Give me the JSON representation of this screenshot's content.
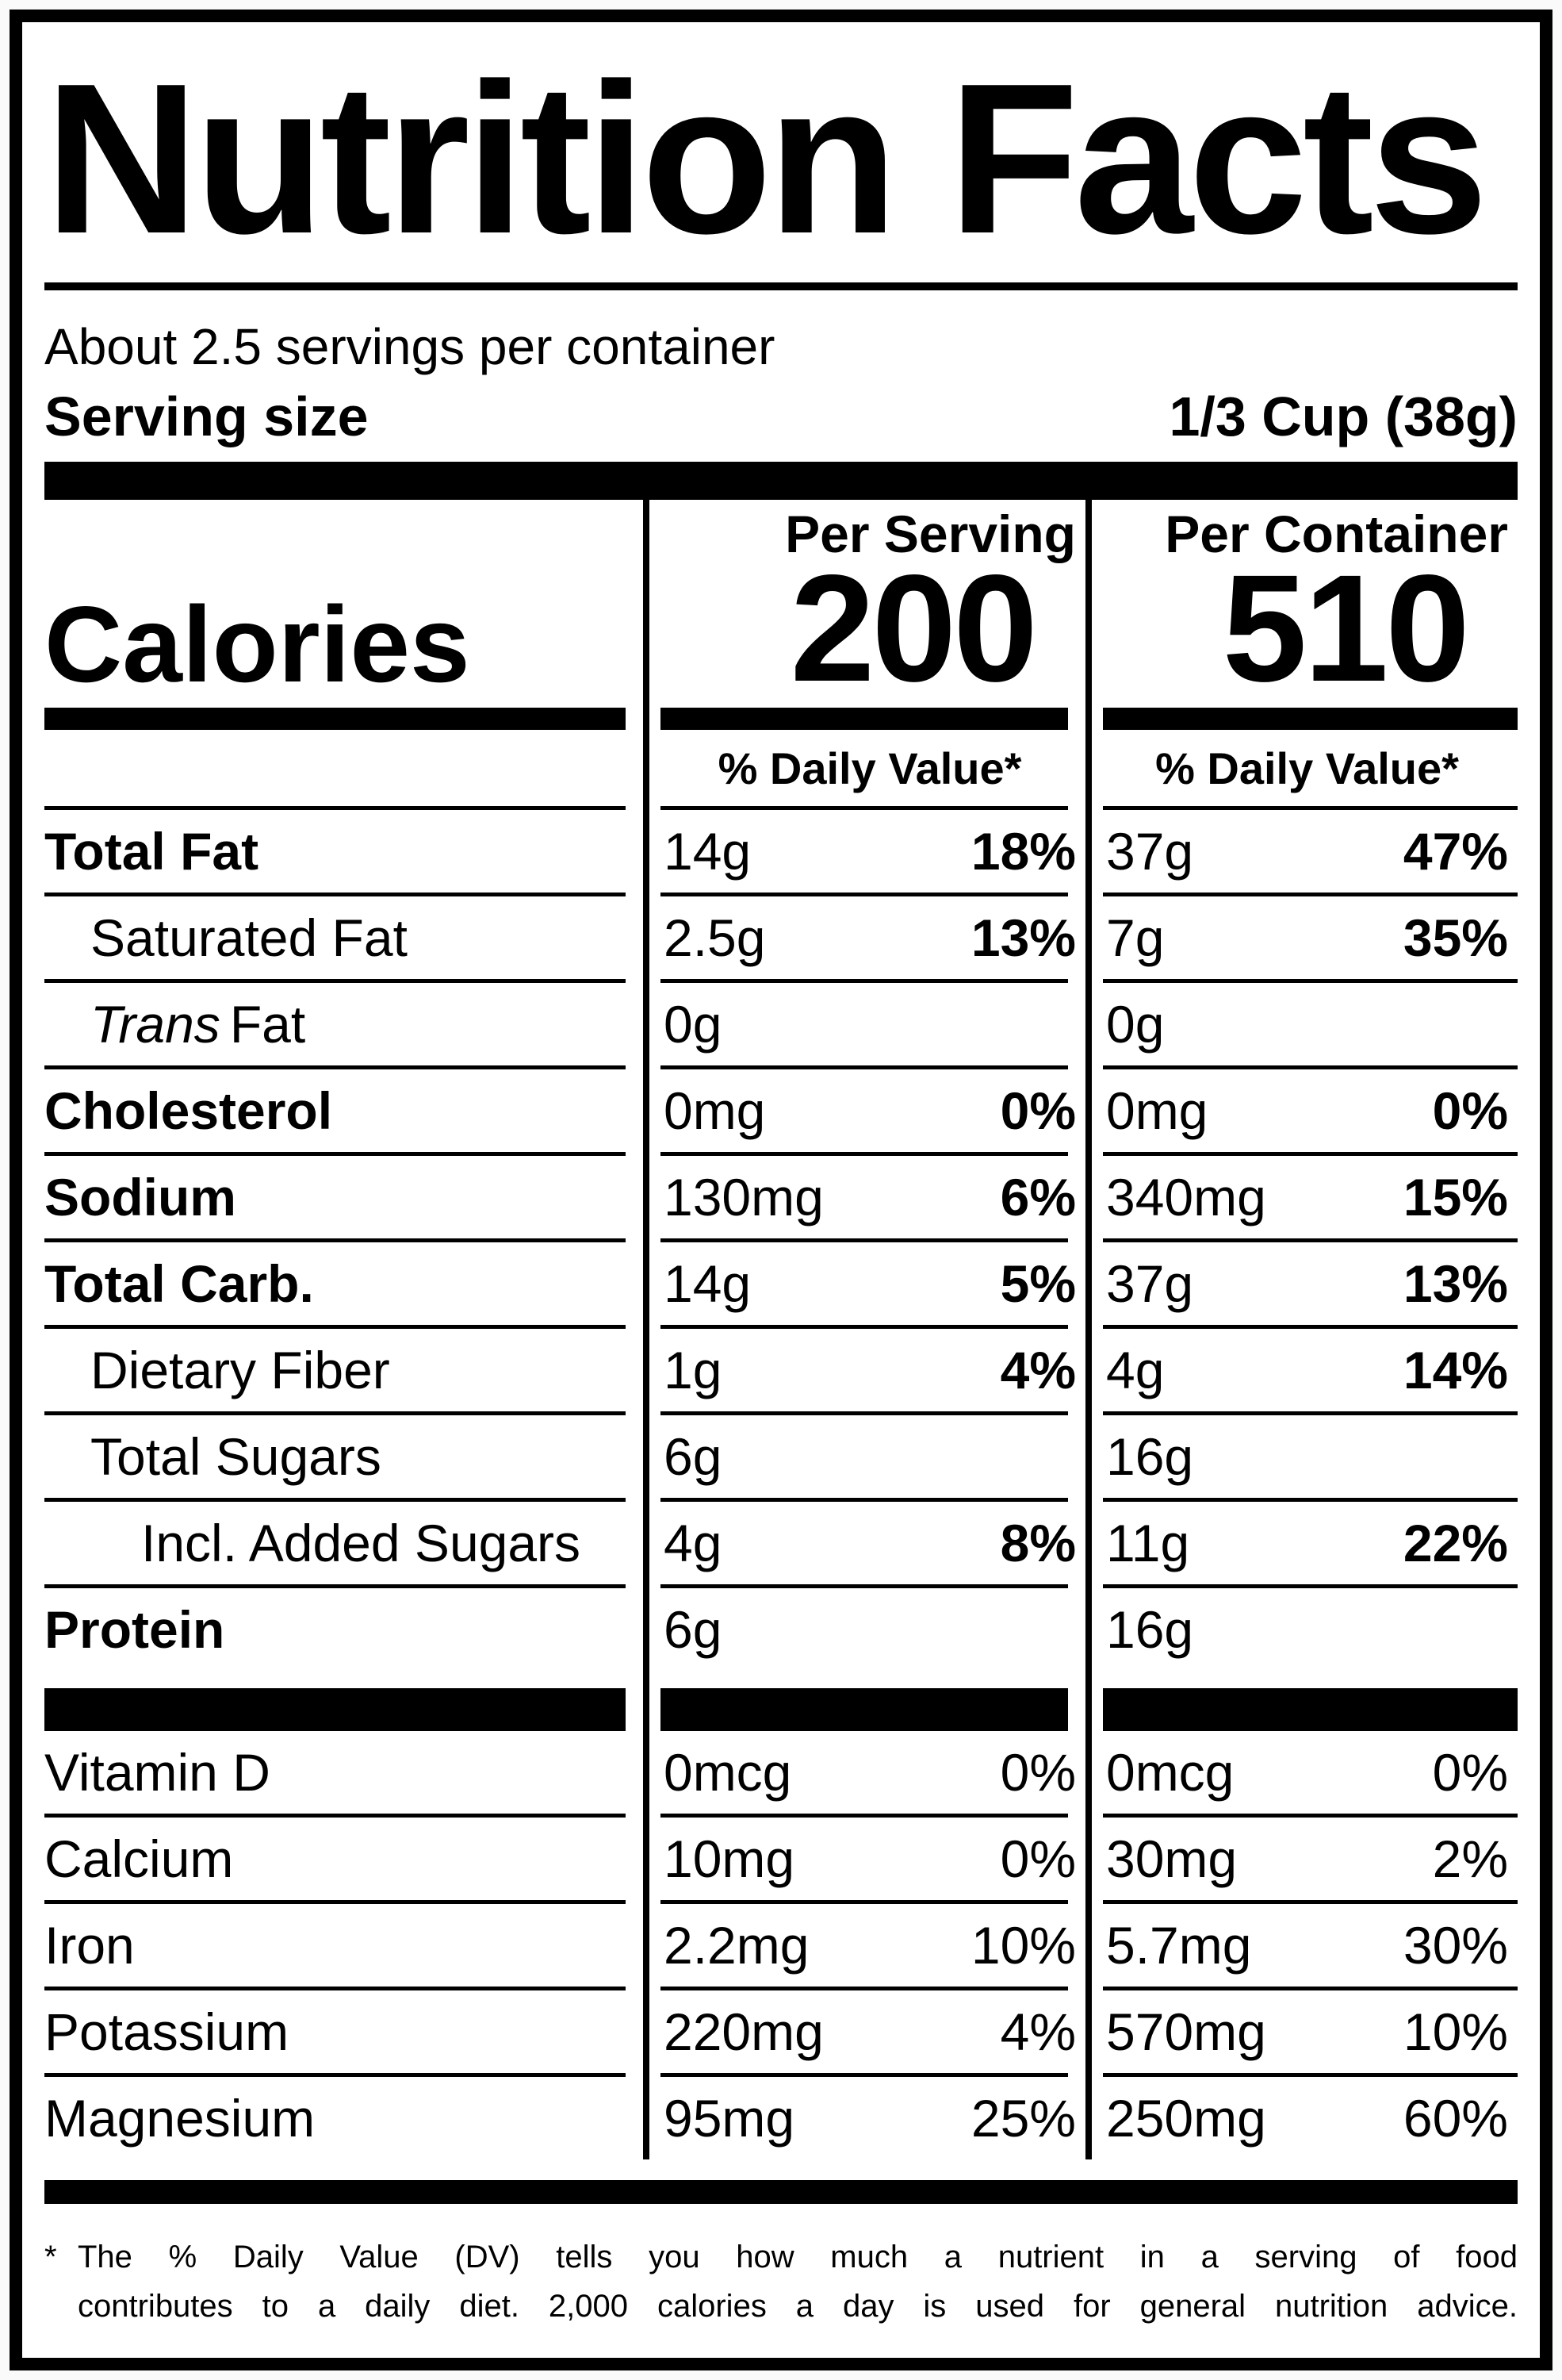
{
  "title": "Nutrition Facts",
  "serving_info": {
    "servings_per_container": "About 2.5 servings per container",
    "serving_size_label": "Serving size",
    "serving_size_value": "1/3 Cup (38g)"
  },
  "calories": {
    "label": "Calories",
    "per_serving_header": "Per Serving",
    "per_container_header": "Per Container",
    "per_serving_value": "200",
    "per_container_value": "510",
    "daily_value_header": "% Daily Value*"
  },
  "rows": [
    {
      "name": "Total Fat",
      "serving_amount": "14g",
      "serving_dv": "18%",
      "container_amount": "37g",
      "container_dv": "47%"
    },
    {
      "name": "Saturated Fat",
      "serving_amount": "2.5g",
      "serving_dv": "13%",
      "container_amount": "7g",
      "container_dv": "35%"
    },
    {
      "name_italic": "Trans",
      "name_rest": "Fat",
      "serving_amount": "0g",
      "serving_dv": "",
      "container_amount": "0g",
      "container_dv": ""
    },
    {
      "name": "Cholesterol",
      "serving_amount": "0mg",
      "serving_dv": "0%",
      "container_amount": "0mg",
      "container_dv": "0%"
    },
    {
      "name": "Sodium",
      "serving_amount": "130mg",
      "serving_dv": "6%",
      "container_amount": "340mg",
      "container_dv": "15%"
    },
    {
      "name": "Total Carb.",
      "serving_amount": "14g",
      "serving_dv": "5%",
      "container_amount": "37g",
      "container_dv": "13%"
    },
    {
      "name": "Dietary Fiber",
      "serving_amount": "1g",
      "serving_dv": "4%",
      "container_amount": "4g",
      "container_dv": "14%"
    },
    {
      "name": "Total Sugars",
      "serving_amount": "6g",
      "serving_dv": "",
      "container_amount": "16g",
      "container_dv": ""
    },
    {
      "name": "Incl. Added Sugars",
      "serving_amount": "4g",
      "serving_dv": "8%",
      "container_amount": "11g",
      "container_dv": "22%"
    },
    {
      "name": "Protein",
      "serving_amount": "6g",
      "serving_dv": "",
      "container_amount": "16g",
      "container_dv": ""
    },
    {
      "name": "Vitamin D",
      "serving_amount": "0mcg",
      "serving_dv": "0%",
      "container_amount": "0mcg",
      "container_dv": "0%"
    },
    {
      "name": "Calcium",
      "serving_amount": "10mg",
      "serving_dv": "0%",
      "container_amount": "30mg",
      "container_dv": "2%"
    },
    {
      "name": "Iron",
      "serving_amount": "2.2mg",
      "serving_dv": "10%",
      "container_amount": "5.7mg",
      "container_dv": "30%"
    },
    {
      "name": "Potassium",
      "serving_amount": "220mg",
      "serving_dv": "4%",
      "container_amount": "570mg",
      "container_dv": "10%"
    },
    {
      "name": "Magnesium",
      "serving_amount": "95mg",
      "serving_dv": "25%",
      "container_amount": "250mg",
      "container_dv": "60%"
    }
  ],
  "footnote": {
    "marker": "*",
    "line1": "The % Daily Value (DV) tells you how much a nutrient in a serving of food",
    "line2": "contributes to a daily diet. 2,000 calories a day is used for general nutrition advice."
  }
}
